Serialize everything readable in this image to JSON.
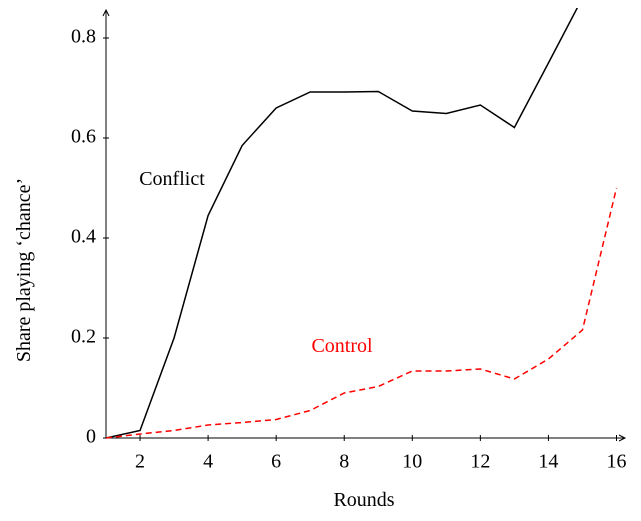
{
  "chart_data": {
    "type": "line",
    "x": [
      1,
      2,
      3,
      4,
      5,
      6,
      7,
      8,
      9,
      10,
      11,
      12,
      13,
      14,
      15,
      16
    ],
    "series": [
      {
        "name": "Conflict",
        "color": "#000000",
        "dash": false,
        "values": [
          0,
          0.015,
          0.2,
          0.445,
          0.585,
          0.66,
          0.692,
          0.692,
          0.693,
          0.654,
          0.649,
          0.666,
          0.621,
          0.75,
          0.88,
          null
        ]
      },
      {
        "name": "Control",
        "color": "#ff0000",
        "dash": true,
        "values": [
          0,
          0.008,
          0.015,
          0.026,
          0.031,
          0.037,
          0.055,
          0.09,
          0.103,
          0.134,
          0.134,
          0.138,
          0.118,
          0.158,
          0.216,
          0.5
        ]
      }
    ],
    "xlabel": "Rounds",
    "ylabel": "Share playing ‘chance’",
    "xlim": [
      1,
      16.25
    ],
    "ylim": [
      0,
      0.86
    ],
    "xticks": [
      2,
      4,
      6,
      8,
      10,
      12,
      14,
      16
    ],
    "yticks": [
      0,
      0.2,
      0.4,
      0.6,
      0.8
    ],
    "grid": false
  }
}
